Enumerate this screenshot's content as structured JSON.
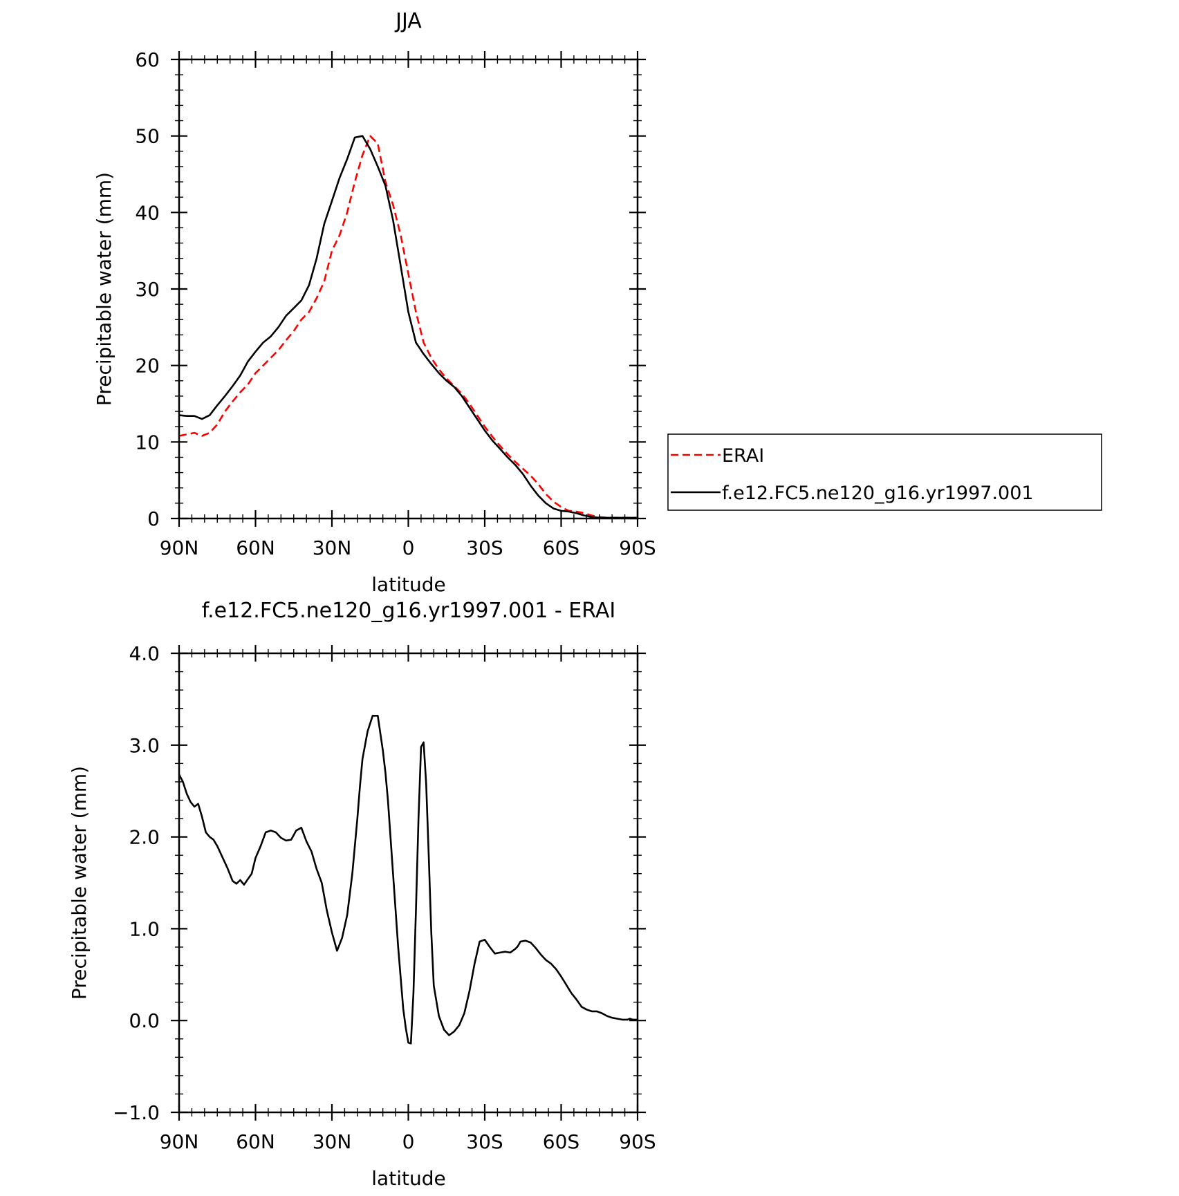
{
  "chart_data": [
    {
      "type": "line",
      "title": "JJA",
      "xlabel": "latitude",
      "ylabel": "Precipitable water (mm)",
      "ylim": [
        0,
        60
      ],
      "xlim": [
        90,
        -90
      ],
      "x_ticks": [
        {
          "value": 90,
          "label": "90N"
        },
        {
          "value": 60,
          "label": "60N"
        },
        {
          "value": 30,
          "label": "30N"
        },
        {
          "value": 0,
          "label": "0"
        },
        {
          "value": -30,
          "label": "30S"
        },
        {
          "value": -60,
          "label": "60S"
        },
        {
          "value": -90,
          "label": "90S"
        }
      ],
      "y_ticks": [
        {
          "value": 0,
          "label": "0"
        },
        {
          "value": 10,
          "label": "10"
        },
        {
          "value": 20,
          "label": "20"
        },
        {
          "value": 30,
          "label": "30"
        },
        {
          "value": 40,
          "label": "40"
        },
        {
          "value": 50,
          "label": "50"
        },
        {
          "value": 60,
          "label": "60"
        }
      ],
      "legend_position": "right",
      "series": [
        {
          "name": "ERAI",
          "color": "#ff0000",
          "dash": "dashed",
          "x": [
            90,
            84,
            81,
            78,
            75,
            72,
            69,
            66,
            63,
            60,
            57,
            54,
            51,
            48,
            45,
            42,
            39,
            36,
            33,
            30,
            27,
            24,
            21,
            18,
            15,
            12,
            9,
            6,
            3,
            0,
            -3,
            -6,
            -9,
            -12,
            -15,
            -18,
            -21,
            -24,
            -27,
            -30,
            -33,
            -36,
            -39,
            -42,
            -45,
            -48,
            -51,
            -54,
            -57,
            -60,
            -63,
            -66,
            -69,
            -72,
            -75,
            -78,
            -81,
            -84,
            -87,
            -90
          ],
          "y": [
            10.8,
            11.2,
            10.8,
            11.2,
            12.3,
            14,
            15.3,
            16.5,
            17.5,
            19,
            20,
            21,
            22,
            23.3,
            24.5,
            26,
            27,
            28.8,
            31,
            35,
            37,
            40,
            44,
            47.5,
            50,
            49,
            44,
            41,
            37,
            32,
            27,
            23,
            21,
            19.5,
            18.3,
            17.3,
            16.3,
            15,
            13.5,
            12,
            10.7,
            9.5,
            8.4,
            7.4,
            6.5,
            5.6,
            4.5,
            3.2,
            2.2,
            1.5,
            1.0,
            0.9,
            0.7,
            0.4,
            0.2,
            0.1,
            0.1,
            0.1,
            0.1,
            0.1
          ]
        },
        {
          "name": "f.e12.FC5.ne120_g16.yr1997.001",
          "color": "#000000",
          "dash": "solid",
          "x": [
            90,
            87,
            84,
            81,
            78,
            75,
            72,
            69,
            66,
            63,
            60,
            57,
            54,
            51,
            48,
            45,
            42,
            39,
            36,
            33,
            30,
            27,
            24,
            21,
            18,
            15,
            12,
            9,
            6,
            3,
            0,
            -3,
            -6,
            -9,
            -12,
            -15,
            -18,
            -21,
            -24,
            -27,
            -30,
            -33,
            -36,
            -39,
            -42,
            -45,
            -48,
            -51,
            -54,
            -57,
            -60,
            -63,
            -66,
            -69,
            -72,
            -75,
            -78,
            -81,
            -84,
            -87,
            -90
          ],
          "y": [
            13.5,
            13.4,
            13.4,
            13,
            13.5,
            14.8,
            16,
            17.3,
            18.7,
            20.5,
            21.8,
            23,
            23.8,
            25,
            26.5,
            27.5,
            28.5,
            30.5,
            34,
            38.5,
            41.5,
            44.5,
            47,
            49.8,
            50,
            48.3,
            46,
            43.5,
            39,
            33,
            27,
            23,
            21.5,
            20.2,
            19,
            18,
            17.2,
            16,
            14.5,
            13,
            11.5,
            10.2,
            9.1,
            8.0,
            7.0,
            5.8,
            4.3,
            3.0,
            2.0,
            1.3,
            1.0,
            0.9,
            0.7,
            0.4,
            0.2,
            0.1,
            0.1,
            0.1,
            0.1,
            0.1,
            0.1
          ]
        }
      ]
    },
    {
      "type": "line",
      "title": "f.e12.FC5.ne120_g16.yr1997.001 - ERAI",
      "xlabel": "latitude",
      "ylabel": "Precipitable water (mm)",
      "ylim": [
        -1.0,
        4.0
      ],
      "xlim": [
        90,
        -90
      ],
      "x_ticks": [
        {
          "value": 90,
          "label": "90N"
        },
        {
          "value": 60,
          "label": "60N"
        },
        {
          "value": 30,
          "label": "30N"
        },
        {
          "value": 0,
          "label": "0"
        },
        {
          "value": -30,
          "label": "30S"
        },
        {
          "value": -60,
          "label": "60S"
        },
        {
          "value": -90,
          "label": "90S"
        }
      ],
      "y_ticks": [
        {
          "value": -1.0,
          "label": "-1.0"
        },
        {
          "value": 0.0,
          "label": "0.0"
        },
        {
          "value": 1.0,
          "label": "1.0"
        },
        {
          "value": 2.0,
          "label": "2.0"
        },
        {
          "value": 3.0,
          "label": "3.0"
        },
        {
          "value": 4.0,
          "label": "4.0"
        }
      ],
      "series": [
        {
          "color": "#000000",
          "dash": "solid",
          "x": [
            90,
            88.5,
            87,
            85.5,
            84,
            82.5,
            81,
            79.5,
            78,
            76.5,
            75,
            73,
            71,
            69,
            67.5,
            66,
            64.5,
            63,
            61.5,
            60,
            58,
            56,
            54,
            52,
            50,
            48,
            46,
            44,
            42,
            40,
            38,
            36,
            34,
            32,
            30,
            28,
            26,
            24,
            22,
            20,
            19,
            18,
            16,
            14,
            12,
            10,
            9,
            8,
            7,
            6,
            4,
            2,
            1,
            0,
            -1,
            -2,
            -3,
            -4,
            -5,
            -6,
            -7,
            -8,
            -9,
            -10,
            -12,
            -14,
            -16,
            -18,
            -20,
            -22,
            -24,
            -26,
            -28,
            -30,
            -32,
            -34,
            -36,
            -38,
            -40,
            -42,
            -43,
            -44,
            -46,
            -48,
            -50,
            -52,
            -54,
            -56,
            -58,
            -60,
            -62,
            -64,
            -66,
            -68,
            -70,
            -72,
            -74,
            -76,
            -78,
            -80,
            -82,
            -84,
            -86,
            -87,
            -88,
            -90
          ],
          "y": [
            2.68,
            2.6,
            2.47,
            2.38,
            2.33,
            2.36,
            2.22,
            2.05,
            2.0,
            1.97,
            1.9,
            1.78,
            1.66,
            1.52,
            1.49,
            1.53,
            1.48,
            1.54,
            1.6,
            1.77,
            1.9,
            2.05,
            2.07,
            2.05,
            1.99,
            1.96,
            1.97,
            2.07,
            2.1,
            1.95,
            1.84,
            1.65,
            1.5,
            1.2,
            0.96,
            0.76,
            0.9,
            1.15,
            1.6,
            2.2,
            2.55,
            2.85,
            3.15,
            3.32,
            3.32,
            2.94,
            2.7,
            2.4,
            2.0,
            1.6,
            0.8,
            0.13,
            -0.08,
            -0.24,
            -0.25,
            0.3,
            1.2,
            2.2,
            2.98,
            3.03,
            2.58,
            1.8,
            0.96,
            0.38,
            0.05,
            -0.1,
            -0.16,
            -0.12,
            -0.05,
            0.08,
            0.32,
            0.62,
            0.86,
            0.88,
            0.8,
            0.73,
            0.74,
            0.75,
            0.74,
            0.78,
            0.81,
            0.86,
            0.87,
            0.85,
            0.79,
            0.72,
            0.66,
            0.62,
            0.56,
            0.48,
            0.39,
            0.3,
            0.23,
            0.15,
            0.12,
            0.1,
            0.1,
            0.08,
            0.05,
            0.03,
            0.02,
            0.01,
            0.01,
            0.02,
            0.01,
            0.01
          ]
        }
      ]
    }
  ]
}
